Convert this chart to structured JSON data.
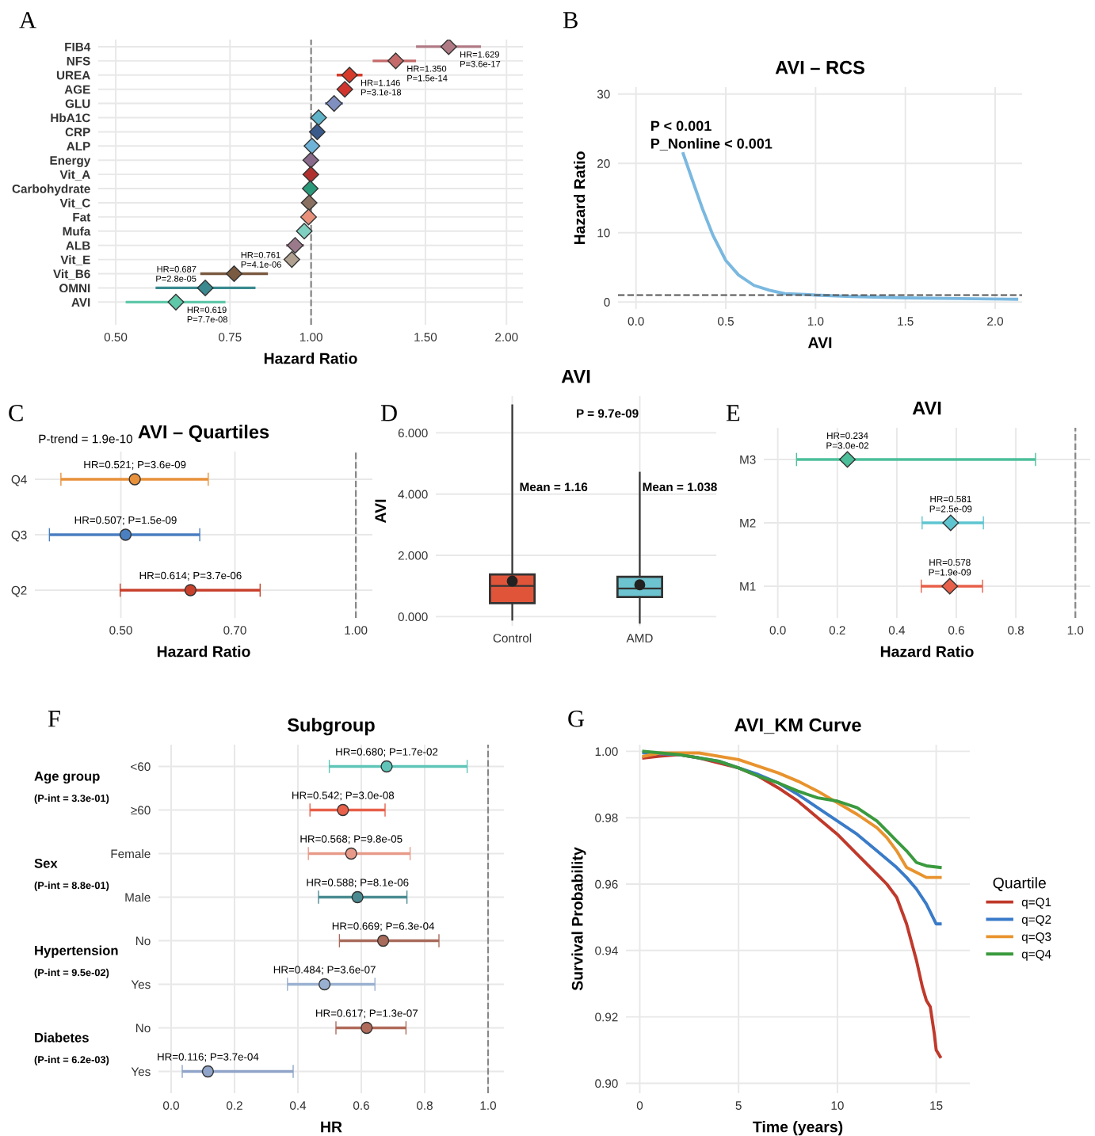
{
  "chart_data": [
    {
      "type": "scatter",
      "orientation": "horizontal",
      "xlabel": "Hazard Ratio",
      "annotations": [
        "A"
      ],
      "log": "x",
      "marker": "diamond",
      "grid": true,
      "categories": [
        "FIB4",
        "NFS",
        "UREA",
        "AGE",
        "GLU",
        "HbA1C",
        "CRP",
        "ALP",
        "Energy",
        "Vit_A",
        "Carbohydrate",
        "Vit_C",
        "Fat",
        "Mufa",
        "ALB",
        "Vit_E",
        "Vit_B6",
        "OMNI",
        "AVI"
      ],
      "values": [
        1.629,
        1.35,
        1.146,
        1.127,
        1.085,
        1.027,
        1.022,
        1.003,
        0.999,
        0.999,
        0.997,
        0.993,
        0.991,
        0.976,
        0.945,
        0.934,
        0.761,
        0.687,
        0.619
      ],
      "errors": [
        [
          1.451,
          1.827
        ],
        [
          1.244,
          1.451
        ],
        [
          1.095,
          1.2
        ],
        [
          1.115,
          1.14
        ],
        [
          1.05,
          1.12
        ],
        [
          1.02,
          1.035
        ],
        [
          1.015,
          1.03
        ],
        [
          0.998,
          1.008
        ],
        [
          0.995,
          1.003
        ],
        [
          0.994,
          1.004
        ],
        [
          0.993,
          1.001
        ],
        [
          0.989,
          0.997
        ],
        [
          0.986,
          0.996
        ],
        [
          0.968,
          0.984
        ],
        [
          0.915,
          0.975
        ],
        [
          0.91,
          0.955
        ],
        [
          0.675,
          0.858
        ],
        [
          0.576,
          0.821
        ],
        [
          0.518,
          0.738
        ]
      ],
      "colors": [
        "#b07a85",
        "#c46a6a",
        "#d83a2a",
        "#d0342c",
        "#7f8fc0",
        "#5fb3c8",
        "#3a5a8c",
        "#6fb4d8",
        "#8a6a8a",
        "#b03030",
        "#2a9a7a",
        "#8a7060",
        "#e8907a",
        "#7fd0c0",
        "#9a7a8a",
        "#b0a090",
        "#7a5a40",
        "#3a8a90",
        "#5ec8a8"
      ],
      "value_labels": [
        "HR=1.629\nP=3.6e-17",
        "HR=1.350\nP=1.5e-14",
        "HR=1.146\nP=3.1e-18",
        null,
        null,
        null,
        null,
        null,
        null,
        null,
        null,
        null,
        null,
        null,
        null,
        null,
        "HR=0.761\nP=4.1e-06",
        "HR=0.687\nP=2.8e-05",
        "HR=0.619\nP=7.7e-08"
      ],
      "xlim": [
        0.47,
        2.12
      ],
      "xticks": [
        {
          "value": 0.5,
          "label": "0.50"
        },
        {
          "value": 0.75,
          "label": "0.75"
        },
        {
          "value": 1.0,
          "label": "1.00"
        },
        {
          "value": 1.5,
          "label": "1.50"
        },
        {
          "value": 2.0,
          "label": "2.00"
        }
      ],
      "ref_lines": [
        {
          "axis": "x",
          "value": 1.0,
          "line_style": "dashed",
          "color": "#888888"
        }
      ]
    },
    {
      "type": "line",
      "title": "AVI – RCS",
      "xlabel": "AVI",
      "ylabel": "Hazard Ratio",
      "annotations": [
        "B",
        "P < 0.001",
        "P_Nonline < 0.001"
      ],
      "grid": true,
      "series": [
        {
          "color": "#7ab8e0",
          "x": [
            0.263,
            0.314,
            0.371,
            0.429,
            0.5,
            0.571,
            0.657,
            0.743,
            0.829,
            0.943,
            1.0,
            1.2,
            1.5,
            1.8,
            2.12
          ],
          "values": [
            21.4,
            17.6,
            13.4,
            9.6,
            6.0,
            3.9,
            2.4,
            1.7,
            1.2,
            1.1,
            1.0,
            0.8,
            0.6,
            0.5,
            0.4
          ]
        }
      ],
      "xlim": [
        -0.1,
        2.15
      ],
      "xticks": [
        {
          "value": 0,
          "label": "0.0"
        },
        0.5,
        {
          "value": 1,
          "label": "1.0"
        },
        1.5,
        {
          "value": 2,
          "label": "2.0"
        }
      ],
      "ylim": [
        -1,
        31
      ],
      "yticks": [
        0,
        10,
        20,
        30
      ],
      "ref_lines": [
        {
          "axis": "y",
          "value": 1,
          "line_style": "dashed",
          "color": "#555555"
        }
      ]
    },
    {
      "type": "scatter",
      "orientation": "horizontal",
      "title": "AVI – Quartiles",
      "xlabel": "Hazard Ratio",
      "annotations": [
        "C",
        "P-trend = 1.9e-10"
      ],
      "log": "x",
      "marker": "circle",
      "grid": true,
      "categories": [
        "Q4",
        "Q3",
        "Q2"
      ],
      "values": [
        0.521,
        0.507,
        0.614
      ],
      "errors": [
        [
          0.419,
          0.647
        ],
        [
          0.405,
          0.631
        ],
        [
          0.499,
          0.754
        ]
      ],
      "colors": [
        "#e8913a",
        "#4a7fc0",
        "#c8412c"
      ],
      "value_labels": [
        "HR=0.521; P=3.6e-09",
        "HR=0.507; P=1.5e-09",
        "HR=0.614; P=3.7e-06"
      ],
      "xlim": [
        0.388,
        1.05
      ],
      "xticks": [
        {
          "value": 0.5,
          "label": "0.50"
        },
        {
          "value": 0.7,
          "label": "0.70"
        },
        {
          "value": 1.0,
          "label": "1.00"
        }
      ],
      "ref_lines": [
        {
          "axis": "x",
          "value": 1.0,
          "line_style": "dashed",
          "color": "#888888"
        }
      ]
    },
    {
      "type": "box",
      "title": "AVI",
      "ylabel": "AVI",
      "annotations": [
        "D",
        "P = 9.7e-09",
        "Mean = 1.16",
        "Mean = 1.038"
      ],
      "grid": true,
      "categories": [
        "Control",
        "AMD"
      ],
      "colors": [
        "#e0553a",
        "#6cc4d0"
      ],
      "boxes": [
        {
          "low": -0.1,
          "q1": 0.44,
          "median": 1.0,
          "q3": 1.38,
          "high": 6.9,
          "mean": 1.16
        },
        {
          "low": -0.2,
          "q1": 0.64,
          "median": 0.92,
          "q3": 1.3,
          "high": 4.7,
          "mean": 1.038
        }
      ],
      "ylim": [
        -0.3,
        7.2
      ],
      "yticks": [
        {
          "value": 0,
          "label": "0.000"
        },
        {
          "value": 2,
          "label": "2.000"
        },
        {
          "value": 4,
          "label": "4.000"
        },
        {
          "value": 6,
          "label": "6.000"
        }
      ]
    },
    {
      "type": "scatter",
      "orientation": "horizontal",
      "title": "AVI",
      "xlabel": "Hazard Ratio",
      "annotations": [
        "E"
      ],
      "marker": "diamond",
      "grid": true,
      "categories": [
        "M3",
        "M2",
        "M1"
      ],
      "values": [
        0.234,
        0.581,
        0.578
      ],
      "errors": [
        [
          0.063,
          0.866
        ],
        [
          0.485,
          0.691
        ],
        [
          0.482,
          0.688
        ]
      ],
      "colors": [
        "#4cbf9a",
        "#5ec5d0",
        "#e8604a"
      ],
      "value_labels": [
        "HR=0.234\nP=3.0e-02",
        "HR=0.581\nP=2.5e-09",
        "HR=0.578\nP=1.9e-09"
      ],
      "xlim": [
        -0.047,
        1.05
      ],
      "xticks": [
        {
          "value": 0,
          "label": "0.0"
        },
        0.2,
        0.4,
        0.6,
        0.8,
        {
          "value": 1,
          "label": "1.0"
        }
      ],
      "ref_lines": [
        {
          "axis": "x",
          "value": 1.0,
          "line_style": "dashed",
          "color": "#888888"
        }
      ]
    },
    {
      "type": "scatter",
      "orientation": "horizontal",
      "title": "Subgroup",
      "xlabel": "HR",
      "marker": "circle",
      "grid": true,
      "annotations": [
        "F",
        "Age group",
        "(P-int = 3.3e-01)",
        "Sex",
        "(P-int = 8.8e-01)",
        "Hypertension",
        "(P-int = 9.5e-02)",
        "Diabetes",
        "(P-int = 6.2e-03)"
      ],
      "categories": [
        "<60",
        "≥60",
        "Female",
        "Male",
        "No",
        "Yes",
        "No",
        "Yes"
      ],
      "values": [
        0.68,
        0.542,
        0.568,
        0.588,
        0.669,
        0.484,
        0.617,
        0.116
      ],
      "errors": [
        [
          0.499,
          0.934
        ],
        [
          0.438,
          0.675
        ],
        [
          0.433,
          0.754
        ],
        [
          0.465,
          0.744
        ],
        [
          0.531,
          0.845
        ],
        [
          0.367,
          0.643
        ],
        [
          0.52,
          0.741
        ],
        [
          0.035,
          0.385
        ]
      ],
      "colors": [
        "#5ec5b8",
        "#e8604a",
        "#e89a88",
        "#4a8a90",
        "#a86a5a",
        "#9ab0d0",
        "#b06a5a",
        "#8fa4c8"
      ],
      "value_labels": [
        "HR=0.680; P=1.7e-02",
        "HR=0.542; P=3.0e-08",
        "HR=0.568; P=9.8e-05",
        "HR=0.588; P=8.1e-06",
        "HR=0.669; P=6.3e-04",
        "HR=0.484; P=3.6e-07",
        "HR=0.617; P=1.3e-07",
        "HR=0.116; P=3.7e-04"
      ],
      "xlim": [
        -0.04,
        1.05
      ],
      "xticks": [
        {
          "value": 0,
          "label": "0.0"
        },
        0.2,
        0.4,
        0.6,
        0.8,
        {
          "value": 1,
          "label": "1.0"
        }
      ],
      "ref_lines": [
        {
          "axis": "x",
          "value": 1.0,
          "line_style": "dashed",
          "color": "#888888"
        }
      ]
    },
    {
      "type": "line",
      "title": "AVI_KM Curve",
      "xlabel": "Time (years)",
      "ylabel": "Survival Probability",
      "annotations": [
        "G"
      ],
      "legend": "right",
      "legend_title": "Quartile",
      "grid": true,
      "series": [
        {
          "name": "q=Q1",
          "color": "#c0392b",
          "x": [
            0.2,
            1,
            2,
            3,
            4,
            5,
            6,
            7,
            8,
            9,
            10,
            11,
            12,
            12.5,
            13,
            13.5,
            14,
            14.3,
            14.5,
            14.7,
            14.9,
            15.0,
            15.2
          ],
          "values": [
            0.998,
            0.9985,
            0.999,
            0.998,
            0.9965,
            0.995,
            0.9925,
            0.989,
            0.985,
            0.98,
            0.975,
            0.969,
            0.963,
            0.96,
            0.956,
            0.948,
            0.937,
            0.929,
            0.925,
            0.923,
            0.915,
            0.91,
            0.908
          ]
        },
        {
          "name": "q=Q2",
          "color": "#3a7bc8",
          "x": [
            0.2,
            2,
            4,
            5,
            6,
            7,
            8,
            9,
            10,
            11,
            12,
            13,
            13.5,
            14,
            14.5,
            15,
            15.2
          ],
          "values": [
            0.9995,
            0.999,
            0.997,
            0.995,
            0.993,
            0.9905,
            0.987,
            0.983,
            0.979,
            0.975,
            0.97,
            0.965,
            0.962,
            0.9585,
            0.954,
            0.948,
            0.948
          ]
        },
        {
          "name": "q=Q3",
          "color": "#e8932e",
          "x": [
            0.2,
            1,
            3,
            5,
            7,
            8,
            9,
            10,
            11,
            12,
            12.5,
            13,
            13.5,
            14,
            14.5,
            15.2
          ],
          "values": [
            0.9985,
            0.9995,
            0.9995,
            0.9975,
            0.9935,
            0.991,
            0.988,
            0.9845,
            0.981,
            0.977,
            0.974,
            0.97,
            0.965,
            0.9635,
            0.962,
            0.962
          ]
        },
        {
          "name": "q=Q4",
          "color": "#3a9a3e",
          "x": [
            0.2,
            2,
            4,
            5,
            6,
            7,
            8,
            9,
            10,
            11,
            12,
            12.5,
            13,
            13.5,
            14,
            14.5,
            15.2
          ],
          "values": [
            1.0,
            0.999,
            0.997,
            0.995,
            0.9925,
            0.9905,
            0.988,
            0.986,
            0.985,
            0.983,
            0.979,
            0.976,
            0.973,
            0.97,
            0.9665,
            0.9655,
            0.965
          ]
        }
      ],
      "xlim": [
        -0.7,
        16.7
      ],
      "xticks": [
        0,
        5,
        10,
        15
      ],
      "ylim": [
        0.897,
        1.002
      ],
      "yticks": [
        {
          "value": 0.9,
          "label": "0.90"
        },
        {
          "value": 0.92,
          "label": "0.92"
        },
        {
          "value": 0.94,
          "label": "0.94"
        },
        {
          "value": 0.96,
          "label": "0.96"
        },
        {
          "value": 0.98,
          "label": "0.98"
        },
        {
          "value": 1.0,
          "label": "1.00"
        }
      ]
    }
  ]
}
